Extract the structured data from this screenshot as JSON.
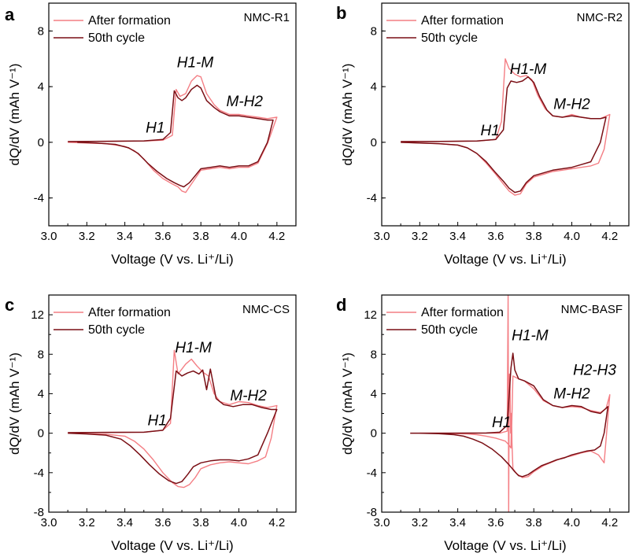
{
  "colors": {
    "after_formation": "#f47e84",
    "cycle50": "#7a0f15",
    "axis": "#000000"
  },
  "chart_data": [
    {
      "type": "line",
      "panel": "a",
      "sample": "NMC-R1",
      "xlabel": "Voltage (V vs. Li⁺/Li)",
      "ylabel": "dQ/dV (mAh V⁻¹)",
      "xlim": [
        3.0,
        4.3
      ],
      "ylim": [
        -6,
        10
      ],
      "xticks": [
        3.0,
        3.2,
        3.4,
        3.6,
        3.8,
        4.0,
        4.2
      ],
      "yticks": [
        -4,
        0,
        4,
        8
      ],
      "legend": [
        "After formation",
        "50th cycle"
      ],
      "legend_position": "top-left",
      "annotations": [
        {
          "text": "H1",
          "x": 3.56,
          "y": 0.7
        },
        {
          "text": "H1-M",
          "x": 3.77,
          "y": 5.4
        },
        {
          "text": "M-H2",
          "x": 4.03,
          "y": 2.6
        }
      ],
      "series": [
        {
          "name": "After formation",
          "x": [
            3.1,
            3.3,
            3.5,
            3.6,
            3.65,
            3.67,
            3.69,
            3.72,
            3.75,
            3.78,
            3.8,
            3.83,
            3.87,
            3.9,
            3.95,
            4.0,
            4.05,
            4.1,
            4.15,
            4.2,
            4.15,
            4.1,
            4.05,
            4.0,
            3.95,
            3.9,
            3.85,
            3.8,
            3.77,
            3.74,
            3.72,
            3.7,
            3.68,
            3.65,
            3.6,
            3.55,
            3.5,
            3.45,
            3.4,
            3.3,
            3.2,
            3.1
          ],
          "y": [
            0.05,
            0.07,
            0.09,
            0.15,
            0.5,
            3.8,
            3.3,
            3.5,
            4.4,
            4.8,
            4.7,
            3.5,
            2.7,
            2.3,
            2.0,
            2.0,
            1.9,
            1.8,
            1.7,
            1.8,
            -0.1,
            -1.5,
            -1.8,
            -1.8,
            -1.9,
            -1.8,
            -1.9,
            -2.0,
            -2.6,
            -3.2,
            -3.6,
            -3.5,
            -3.2,
            -3.0,
            -2.6,
            -2.0,
            -1.2,
            -0.6,
            -0.3,
            -0.1,
            -0.05,
            0.0
          ]
        },
        {
          "name": "50th cycle",
          "x": [
            3.1,
            3.3,
            3.5,
            3.6,
            3.64,
            3.66,
            3.68,
            3.7,
            3.72,
            3.75,
            3.78,
            3.8,
            3.83,
            3.87,
            3.9,
            3.95,
            4.0,
            4.05,
            4.1,
            4.15,
            4.18,
            4.15,
            4.1,
            4.05,
            4.0,
            3.95,
            3.9,
            3.85,
            3.8,
            3.77,
            3.74,
            3.71,
            3.69,
            3.66,
            3.62,
            3.57,
            3.52,
            3.47,
            3.42,
            3.35,
            3.25,
            3.15
          ],
          "y": [
            0.05,
            0.07,
            0.1,
            0.2,
            0.7,
            3.7,
            3.2,
            3.0,
            3.2,
            3.8,
            4.1,
            3.9,
            3.0,
            2.5,
            2.2,
            1.9,
            1.9,
            1.8,
            1.7,
            1.6,
            1.6,
            0.0,
            -1.4,
            -1.7,
            -1.7,
            -1.8,
            -1.7,
            -1.8,
            -1.9,
            -2.4,
            -2.9,
            -3.2,
            -3.1,
            -2.9,
            -2.6,
            -2.1,
            -1.5,
            -0.8,
            -0.4,
            -0.15,
            -0.05,
            0.0
          ]
        }
      ]
    },
    {
      "type": "line",
      "panel": "b",
      "sample": "NMC-R2",
      "xlabel": "Voltage (V vs. Li⁺/Li)",
      "ylabel": "dQ/dV (mAh V⁻¹)",
      "xlim": [
        3.0,
        4.3
      ],
      "ylim": [
        -6,
        10
      ],
      "xticks": [
        3.0,
        3.2,
        3.4,
        3.6,
        3.8,
        4.0,
        4.2
      ],
      "yticks": [
        -4,
        0,
        4,
        8
      ],
      "legend": [
        "After formation",
        "50th cycle"
      ],
      "legend_position": "top-left",
      "annotations": [
        {
          "text": "H1",
          "x": 3.57,
          "y": 0.5
        },
        {
          "text": "H1-M",
          "x": 3.77,
          "y": 4.9
        },
        {
          "text": "M-H2",
          "x": 4.0,
          "y": 2.4
        }
      ],
      "series": [
        {
          "name": "After formation",
          "x": [
            3.1,
            3.3,
            3.5,
            3.6,
            3.63,
            3.65,
            3.67,
            3.7,
            3.73,
            3.76,
            3.79,
            3.82,
            3.86,
            3.9,
            3.95,
            4.0,
            4.05,
            4.1,
            4.15,
            4.2,
            4.17,
            4.14,
            4.1,
            4.05,
            4.0,
            3.95,
            3.9,
            3.85,
            3.8,
            3.76,
            3.73,
            3.7,
            3.67,
            3.64,
            3.6,
            3.55,
            3.5,
            3.45,
            3.4,
            3.3,
            3.2,
            3.1
          ],
          "y": [
            0.05,
            0.06,
            0.09,
            0.2,
            1.5,
            6.0,
            5.3,
            4.9,
            4.7,
            4.8,
            4.5,
            3.4,
            2.4,
            1.9,
            1.8,
            2.0,
            1.8,
            1.7,
            1.7,
            2.0,
            -0.5,
            -1.5,
            -1.7,
            -1.8,
            -1.9,
            -2.0,
            -2.1,
            -2.3,
            -2.5,
            -3.0,
            -3.7,
            -3.8,
            -3.5,
            -3.0,
            -2.3,
            -1.5,
            -0.8,
            -0.4,
            -0.2,
            -0.1,
            -0.05,
            0.0
          ]
        },
        {
          "name": "50th cycle",
          "x": [
            3.1,
            3.3,
            3.5,
            3.6,
            3.64,
            3.66,
            3.68,
            3.71,
            3.74,
            3.77,
            3.8,
            3.83,
            3.87,
            3.9,
            3.95,
            4.0,
            4.05,
            4.1,
            4.15,
            4.18,
            4.15,
            4.1,
            4.05,
            4.0,
            3.95,
            3.9,
            3.85,
            3.8,
            3.76,
            3.73,
            3.7,
            3.67,
            3.64,
            3.6,
            3.55,
            3.5,
            3.45,
            3.4,
            3.3,
            3.2,
            3.1
          ],
          "y": [
            0.05,
            0.06,
            0.09,
            0.2,
            0.9,
            3.9,
            4.4,
            4.3,
            4.4,
            4.7,
            4.3,
            3.3,
            2.3,
            1.9,
            1.8,
            1.9,
            1.8,
            1.7,
            1.7,
            1.8,
            0.0,
            -1.4,
            -1.6,
            -1.8,
            -1.9,
            -2.0,
            -2.2,
            -2.4,
            -2.9,
            -3.5,
            -3.6,
            -3.3,
            -2.8,
            -2.2,
            -1.4,
            -0.8,
            -0.4,
            -0.2,
            -0.1,
            -0.05,
            0.0
          ]
        }
      ]
    },
    {
      "type": "line",
      "panel": "c",
      "sample": "NMC-CS",
      "xlabel": "Voltage (V vs. Li⁺/Li)",
      "ylabel": "dQ/dV (mAh V⁻¹)",
      "xlim": [
        3.0,
        4.3
      ],
      "ylim": [
        -8,
        14
      ],
      "xticks": [
        3.0,
        3.2,
        3.4,
        3.6,
        3.8,
        4.0,
        4.2
      ],
      "yticks": [
        -8,
        -4,
        0,
        4,
        8,
        12
      ],
      "legend": [
        "After formation",
        "50th cycle"
      ],
      "legend_position": "top-left",
      "annotations": [
        {
          "text": "H1",
          "x": 3.57,
          "y": 0.8
        },
        {
          "text": "H1-M",
          "x": 3.76,
          "y": 8.2
        },
        {
          "text": "M-H2",
          "x": 4.05,
          "y": 3.3
        }
      ],
      "series": [
        {
          "name": "After formation",
          "x": [
            3.1,
            3.3,
            3.5,
            3.6,
            3.64,
            3.66,
            3.68,
            3.7,
            3.72,
            3.75,
            3.78,
            3.81,
            3.84,
            3.87,
            3.9,
            3.95,
            4.0,
            4.05,
            4.1,
            4.15,
            4.2,
            4.17,
            4.14,
            4.1,
            4.05,
            4.0,
            3.95,
            3.9,
            3.85,
            3.8,
            3.77,
            3.74,
            3.71,
            3.68,
            3.65,
            3.6,
            3.55,
            3.5,
            3.45,
            3.4,
            3.3,
            3.2,
            3.1
          ],
          "y": [
            0.05,
            0.08,
            0.1,
            0.3,
            1.0,
            8.4,
            6.0,
            6.5,
            7.0,
            7.5,
            6.8,
            6.2,
            5.8,
            4.0,
            3.2,
            2.9,
            3.2,
            3.1,
            2.8,
            2.6,
            2.8,
            -0.5,
            -2.4,
            -2.8,
            -3.1,
            -3.0,
            -2.9,
            -3.0,
            -3.2,
            -3.6,
            -4.5,
            -5.2,
            -5.5,
            -5.4,
            -5.0,
            -4.0,
            -2.7,
            -1.6,
            -0.8,
            -0.3,
            -0.1,
            -0.05,
            0.0
          ]
        },
        {
          "name": "50th cycle",
          "x": [
            3.1,
            3.3,
            3.5,
            3.6,
            3.64,
            3.67,
            3.7,
            3.73,
            3.76,
            3.79,
            3.81,
            3.83,
            3.85,
            3.88,
            3.92,
            3.97,
            4.02,
            4.07,
            4.12,
            4.17,
            4.2,
            4.15,
            4.1,
            4.05,
            4.0,
            3.95,
            3.9,
            3.85,
            3.8,
            3.76,
            3.73,
            3.7,
            3.67,
            3.63,
            3.58,
            3.53,
            3.48,
            3.43,
            3.38,
            3.3,
            3.2,
            3.1
          ],
          "y": [
            0.05,
            0.08,
            0.1,
            0.3,
            1.5,
            6.3,
            5.8,
            6.1,
            6.3,
            6.0,
            6.4,
            4.4,
            6.5,
            3.5,
            2.9,
            2.7,
            2.9,
            2.9,
            2.6,
            2.4,
            2.4,
            0.0,
            -2.2,
            -2.6,
            -2.8,
            -2.7,
            -2.7,
            -2.8,
            -3.0,
            -3.4,
            -4.2,
            -4.9,
            -5.1,
            -4.8,
            -4.1,
            -3.2,
            -2.2,
            -1.3,
            -0.6,
            -0.2,
            -0.08,
            0.0
          ]
        }
      ]
    },
    {
      "type": "line",
      "panel": "d",
      "sample": "NMC-BASF",
      "xlabel": "Voltage (V vs. Li⁺/Li)",
      "ylabel": "dQ/dV (mAh V⁻¹)",
      "xlim": [
        3.0,
        4.3
      ],
      "ylim": [
        -8,
        14
      ],
      "xticks": [
        3.0,
        3.2,
        3.4,
        3.6,
        3.8,
        4.0,
        4.2
      ],
      "yticks": [
        -8,
        -4,
        0,
        4,
        8,
        12
      ],
      "legend": [
        "After formation",
        "50th cycle"
      ],
      "legend_position": "top-left",
      "annotations": [
        {
          "text": "H1",
          "x": 3.63,
          "y": 0.6
        },
        {
          "text": "H1-M",
          "x": 3.78,
          "y": 9.4
        },
        {
          "text": "M-H2",
          "x": 4.0,
          "y": 3.5
        },
        {
          "text": "H2-H3",
          "x": 4.12,
          "y": 5.9
        }
      ],
      "series": [
        {
          "name": "After formation",
          "x": [
            3.2,
            3.4,
            3.55,
            3.62,
            3.66,
            3.665,
            3.668,
            3.67,
            3.672,
            3.675,
            3.678,
            3.68,
            3.682,
            3.69,
            3.72,
            3.75,
            3.8,
            3.85,
            3.9,
            3.95,
            4.0,
            4.05,
            4.1,
            4.15,
            4.18,
            4.2,
            4.17,
            4.14,
            4.1,
            4.05,
            4.0,
            3.95,
            3.9,
            3.85,
            3.8,
            3.77,
            3.74,
            3.71,
            3.69,
            3.685,
            3.683,
            3.68,
            3.67,
            3.65,
            3.6,
            3.55,
            3.5,
            3.45,
            3.4,
            3.35,
            3.3,
            3.2
          ],
          "y": [
            0.0,
            0.0,
            0.0,
            0.0,
            0.2,
            14.0,
            -8.0,
            1.0,
            6.0,
            5.0,
            0.0,
            2.0,
            -1.0,
            5.8,
            5.5,
            5.3,
            4.5,
            3.3,
            2.8,
            2.6,
            2.7,
            2.6,
            2.3,
            2.1,
            2.5,
            3.9,
            -3.0,
            -2.2,
            -1.8,
            -2.0,
            -2.3,
            -2.5,
            -2.9,
            -3.3,
            -3.9,
            -4.4,
            -4.5,
            -4.1,
            -3.6,
            -1.0,
            2.0,
            -1.5,
            -1.2,
            -0.8,
            -0.5,
            -0.3,
            -0.15,
            -0.08,
            -0.05,
            -0.02,
            0.0,
            0.0
          ]
        },
        {
          "name": "50th cycle",
          "x": [
            3.15,
            3.35,
            3.55,
            3.62,
            3.66,
            3.68,
            3.69,
            3.7,
            3.72,
            3.75,
            3.8,
            3.85,
            3.9,
            3.95,
            4.0,
            4.05,
            4.1,
            4.15,
            4.19,
            4.17,
            4.15,
            4.12,
            4.08,
            4.04,
            4.0,
            3.96,
            3.92,
            3.88,
            3.84,
            3.8,
            3.77,
            3.74,
            3.72,
            3.7,
            3.67,
            3.63,
            3.58,
            3.53,
            3.48,
            3.43,
            3.38,
            3.3,
            3.2,
            3.15
          ],
          "y": [
            0.0,
            0.0,
            0.02,
            0.1,
            0.8,
            6.6,
            8.1,
            6.4,
            5.5,
            5.3,
            4.8,
            3.4,
            2.8,
            2.6,
            2.8,
            2.7,
            2.2,
            2.0,
            2.7,
            0.0,
            -1.3,
            -1.7,
            -1.8,
            -2.0,
            -2.2,
            -2.5,
            -2.7,
            -3.0,
            -3.3,
            -3.8,
            -4.2,
            -4.4,
            -4.3,
            -3.9,
            -3.2,
            -2.4,
            -1.6,
            -1.0,
            -0.6,
            -0.3,
            -0.15,
            -0.05,
            0.0,
            0.0
          ]
        }
      ]
    }
  ]
}
